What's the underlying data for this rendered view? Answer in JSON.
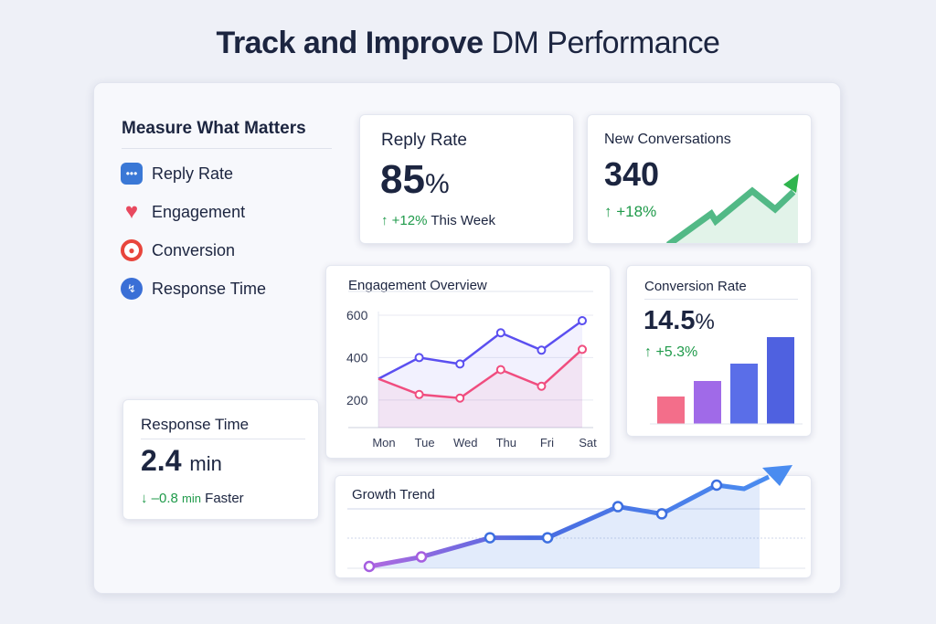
{
  "title": {
    "bold": "Track and Improve",
    "rest": "DM Performance"
  },
  "sidebar": {
    "heading": "Measure What Matters",
    "items": [
      {
        "label": "Reply Rate",
        "icon": "chat-bubble-icon",
        "color": "#3a78d6"
      },
      {
        "label": "Engagement",
        "icon": "heart-icon",
        "color": "#e8495f"
      },
      {
        "label": "Conversion",
        "icon": "target-icon",
        "color": "#e8453c"
      },
      {
        "label": "Response Time",
        "icon": "stopwatch-icon",
        "color": "#3a6fd6"
      }
    ]
  },
  "reply_rate": {
    "title": "Reply Rate",
    "value": "85",
    "unit": "%",
    "change": "+12%",
    "change_suffix": "This Week"
  },
  "new_conversations": {
    "title": "New Conversations",
    "value": "340",
    "change": "+18%"
  },
  "response_time": {
    "title": "Response Time",
    "value": "2.4",
    "unit": "min",
    "change": "–0.8",
    "change_unit": "min",
    "change_suffix": "Faster"
  },
  "conversion_rate": {
    "title": "Conversion Rate",
    "value": "14.5",
    "unit": "%",
    "change": "+5.3%"
  },
  "chart_data": [
    {
      "type": "line",
      "title": "Engagement Overview",
      "categories": [
        "Mon",
        "Tue",
        "Wed",
        "Thu",
        "Fri",
        "Sat"
      ],
      "yticks": [
        "600",
        "400",
        "200"
      ],
      "ylim": [
        70,
        600
      ],
      "series": [
        {
          "color": "#5b4ff0",
          "values": [
            300,
            400,
            370,
            517,
            435,
            574
          ]
        },
        {
          "color": "#f04d7f",
          "values": [
            300,
            226,
            209,
            343,
            265,
            439
          ]
        }
      ]
    },
    {
      "type": "bar",
      "title": "Conversion Rate",
      "values": [
        30,
        47,
        66,
        95
      ],
      "colors": [
        "#f36e8a",
        "#a06ae8",
        "#5a6ee8",
        "#4f61e0"
      ]
    },
    {
      "type": "line",
      "title": "Growth Trend",
      "values": [
        10,
        14,
        22,
        22,
        35,
        32,
        44
      ],
      "color": "#3d7ae3"
    }
  ],
  "colors": {
    "up": "#1f9a4a",
    "text": "#1c2540"
  }
}
